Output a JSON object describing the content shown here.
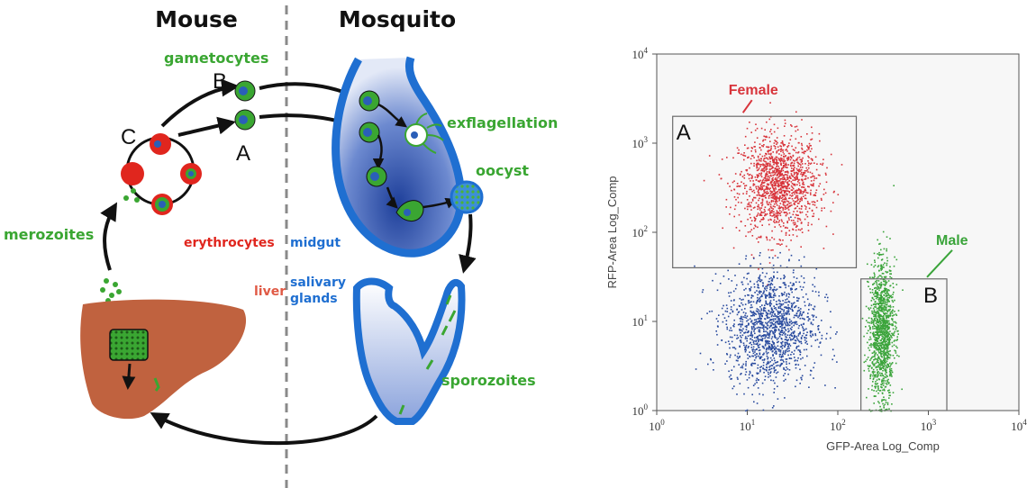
{
  "diagram": {
    "headers": {
      "mouse": "Mouse",
      "mosquito": "Mosquito"
    },
    "labels": {
      "gametocytes": "gametocytes",
      "exflagellation": "exflagellation",
      "oocyst": "oocyst",
      "merozoites": "merozoites",
      "erythrocytes": "erythrocytes",
      "midgut": "midgut",
      "liver": "liver",
      "salivary1": "salivary",
      "salivary2": "glands",
      "sporozoites": "sporozoites",
      "mark_a": "A",
      "mark_b": "B",
      "mark_c": "C"
    },
    "colors": {
      "green": "#3aa632",
      "red": "#e0261e",
      "blue": "#1f6fd1",
      "liver": "#c0623f",
      "dark": "#1a1a1a"
    }
  },
  "chart_data": {
    "type": "scatter",
    "xlabel": "GFP-Area Log_Comp",
    "ylabel": "RFP-Area Log_Comp",
    "xscale": "log",
    "yscale": "log",
    "xlim": [
      1,
      10000
    ],
    "ylim": [
      1,
      10000
    ],
    "x_ticks": [
      {
        "base": "10",
        "exp": "0"
      },
      {
        "base": "10",
        "exp": "1"
      },
      {
        "base": "10",
        "exp": "2"
      },
      {
        "base": "10",
        "exp": "3"
      },
      {
        "base": "10",
        "exp": "4"
      }
    ],
    "y_ticks": [
      {
        "base": "10",
        "exp": "0"
      },
      {
        "base": "10",
        "exp": "1"
      },
      {
        "base": "10",
        "exp": "2"
      },
      {
        "base": "10",
        "exp": "3"
      },
      {
        "base": "10",
        "exp": "4"
      }
    ],
    "series": [
      {
        "name": "Female",
        "color": "#d8343b",
        "center": [
          22,
          350
        ],
        "spread": [
          0.22,
          0.28
        ],
        "n": 1400
      },
      {
        "name": "",
        "color": "#284a9e",
        "center": [
          18,
          9
        ],
        "spread": [
          0.25,
          0.32
        ],
        "n": 1400
      },
      {
        "name": "Male",
        "color": "#3aa43a",
        "center": [
          300,
          8
        ],
        "spread": [
          0.07,
          0.38
        ],
        "n": 1200
      }
    ],
    "gates": [
      {
        "label": "A",
        "name": "Female",
        "x": [
          1.5,
          160
        ],
        "y": [
          40,
          2000
        ],
        "color": "#d8343b"
      },
      {
        "label": "B",
        "name": "Male",
        "x": [
          180,
          1600
        ],
        "y": [
          1,
          30
        ],
        "color": "#3aa43a"
      }
    ],
    "grid": false
  }
}
